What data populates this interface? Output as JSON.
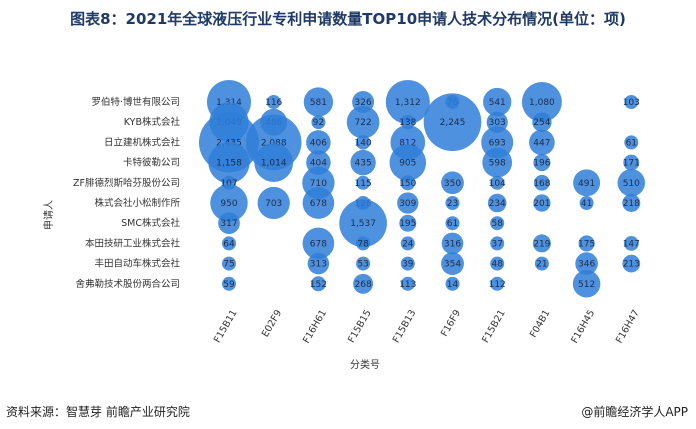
{
  "page": {
    "source": "资料来源：智慧芽 前瞻产业研究院",
    "brand": "@前瞻经济学人APP"
  },
  "colors": {
    "bubble": "#2f7ed8",
    "title": "#1f3a66"
  },
  "chart_data": {
    "type": "bubble",
    "title": "图表8：2021年全球液压行业专利申请数量TOP10申请人技术分布情况(单位：项)",
    "xlabel": "分类号",
    "ylabel": "申请人",
    "x_categories": [
      "F15B11",
      "E02F9",
      "F16H61",
      "F15B15",
      "F15B13",
      "F16F9",
      "F15B21",
      "F04B1",
      "F16H45",
      "F16H47"
    ],
    "y_categories": [
      "罗伯特·博世有限公司",
      "KYB株式会社",
      "日立建机株式会社",
      "卡特彼勒公司",
      "ZF腓德烈斯哈芬股份公司",
      "株式会社小松制作所",
      "SMC株式会社",
      "本田技研工业株式会社",
      "丰田自动车株式会社",
      "舍弗勒技术股份两合公司"
    ],
    "values": [
      [
        1314,
        116,
        581,
        326,
        1312,
        76,
        541,
        1080,
        null,
        103
      ],
      [
        1049,
        486,
        92,
        722,
        138,
        2245,
        303,
        254,
        null,
        null
      ],
      [
        2435,
        2088,
        406,
        140,
        812,
        null,
        693,
        447,
        null,
        61
      ],
      [
        1158,
        1014,
        404,
        435,
        905,
        null,
        598,
        196,
        null,
        171
      ],
      [
        107,
        null,
        710,
        115,
        150,
        350,
        104,
        168,
        491,
        510
      ],
      [
        950,
        703,
        678,
        126,
        309,
        23,
        234,
        201,
        41,
        218
      ],
      [
        317,
        null,
        null,
        1537,
        195,
        61,
        58,
        null,
        null,
        null
      ],
      [
        64,
        null,
        678,
        78,
        24,
        316,
        37,
        219,
        175,
        147
      ],
      [
        75,
        null,
        313,
        53,
        39,
        354,
        48,
        21,
        346,
        213
      ],
      [
        59,
        null,
        152,
        268,
        113,
        14,
        112,
        null,
        512,
        null
      ]
    ],
    "legend": "none",
    "grid": false
  }
}
